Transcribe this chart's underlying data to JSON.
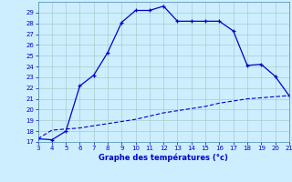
{
  "xlabel": "Graphe des températures (°c)",
  "x_upper": [
    3,
    4,
    5,
    6,
    7,
    8,
    9,
    10,
    11,
    12,
    13,
    14,
    15,
    16,
    17,
    18,
    19,
    20,
    21
  ],
  "y_upper": [
    17.3,
    17.2,
    18.0,
    22.2,
    23.2,
    25.3,
    28.1,
    29.2,
    29.2,
    29.6,
    28.2,
    28.2,
    28.2,
    28.2,
    27.3,
    24.1,
    24.2,
    23.1,
    21.3
  ],
  "x_lower": [
    3,
    4,
    5,
    6,
    7,
    8,
    9,
    10,
    11,
    12,
    13,
    14,
    15,
    16,
    17,
    18,
    19,
    20,
    21
  ],
  "y_lower": [
    17.3,
    18.1,
    18.2,
    18.3,
    18.5,
    18.7,
    18.9,
    19.1,
    19.4,
    19.7,
    19.9,
    20.1,
    20.3,
    20.6,
    20.8,
    21.0,
    21.1,
    21.2,
    21.3
  ],
  "line_color": "#0000cc",
  "bg_color": "#cceeff",
  "grid_color": "#aacccc",
  "xlim": [
    3,
    21
  ],
  "ylim": [
    17,
    30
  ],
  "yticks": [
    17,
    18,
    19,
    20,
    21,
    22,
    23,
    24,
    25,
    26,
    27,
    28,
    29
  ],
  "xticks": [
    3,
    4,
    5,
    6,
    7,
    8,
    9,
    10,
    11,
    12,
    13,
    14,
    15,
    16,
    17,
    18,
    19,
    20,
    21
  ]
}
